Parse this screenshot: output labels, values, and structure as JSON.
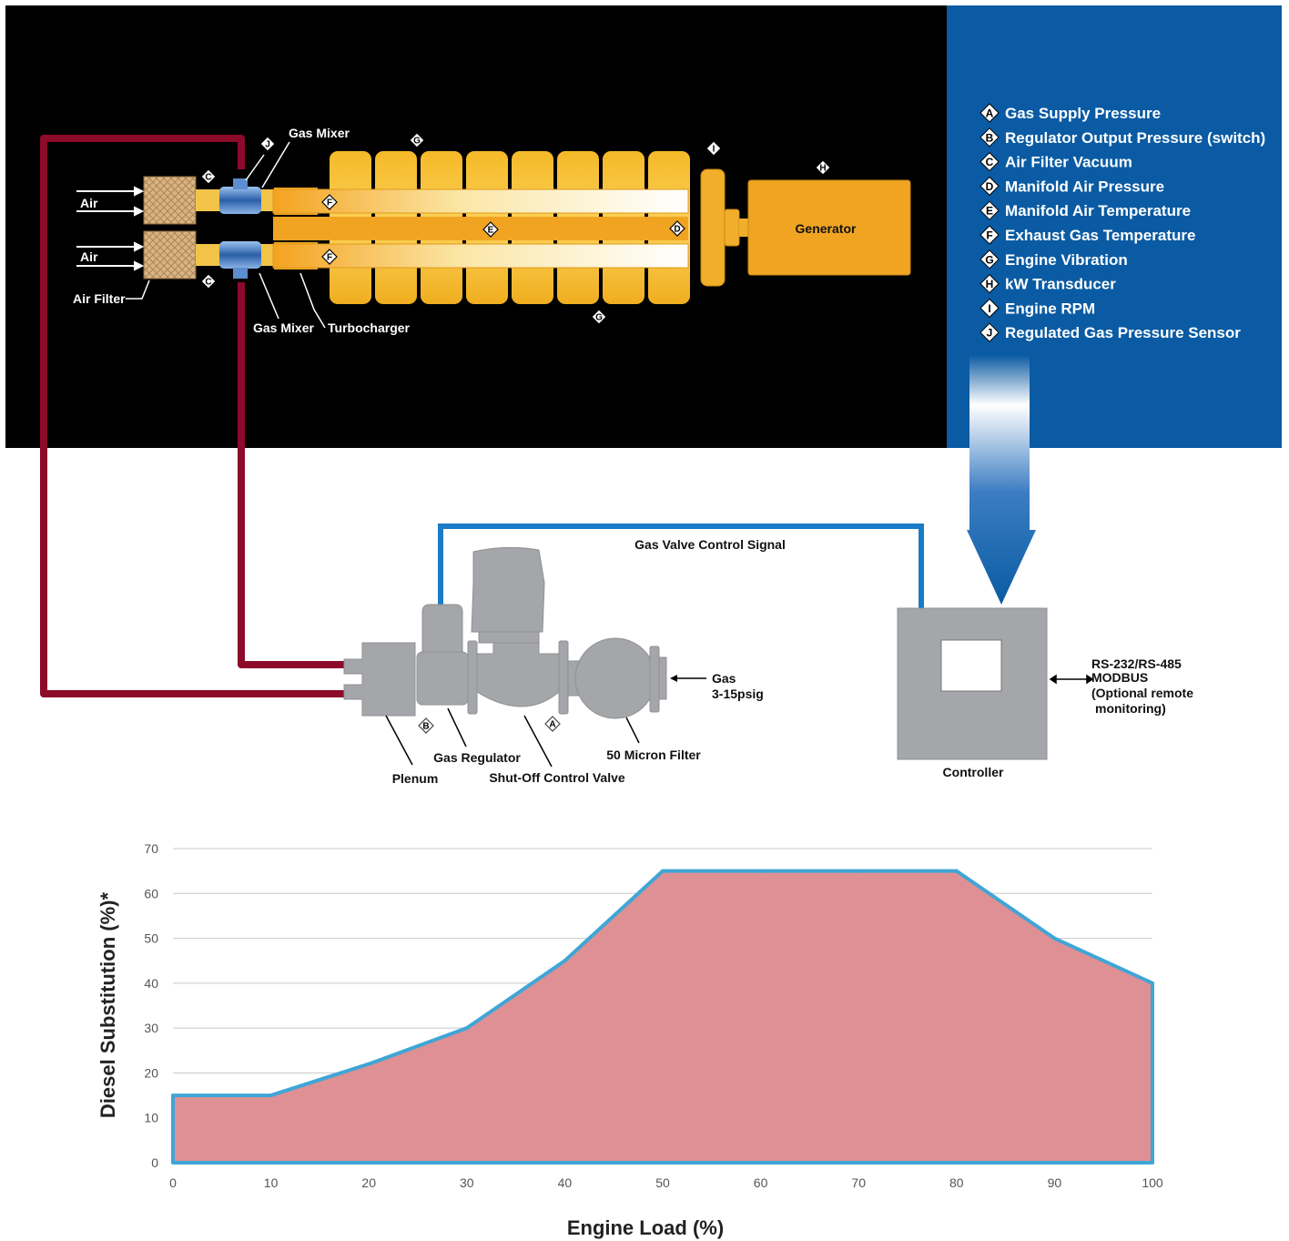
{
  "engine_labels": {
    "air_top": "Air",
    "air_bottom": "Air",
    "air_filter": "Air Filter",
    "gas_mixer_top": "Gas Mixer",
    "gas_mixer_bottom": "Gas Mixer",
    "turbocharger": "Turbocharger",
    "generator": "Generator"
  },
  "sensor_markers": {
    "j": "J",
    "g_top": "G",
    "g_bottom": "G",
    "i": "I",
    "h": "H",
    "c_top": "C",
    "c_bottom": "C",
    "f_top": "F",
    "f_bottom": "F",
    "e": "E",
    "d": "D",
    "b": "B",
    "a": "A"
  },
  "legend": [
    {
      "letter": "A",
      "text": "Gas Supply Pressure"
    },
    {
      "letter": "B",
      "text": "Regulator Output Pressure (switch)"
    },
    {
      "letter": "C",
      "text": "Air Filter Vacuum"
    },
    {
      "letter": "D",
      "text": "Manifold Air Pressure"
    },
    {
      "letter": "E",
      "text": "Manifold Air Temperature"
    },
    {
      "letter": "F",
      "text": "Exhaust Gas Temperature"
    },
    {
      "letter": "G",
      "text": "Engine Vibration"
    },
    {
      "letter": "H",
      "text": "kW Transducer"
    },
    {
      "letter": "I",
      "text": "Engine RPM"
    },
    {
      "letter": "J",
      "text": "Regulated Gas Pressure Sensor"
    }
  ],
  "gas_train": {
    "control_signal": "Gas Valve Control Signal",
    "gas_inlet_line1": "Gas",
    "gas_inlet_line2": "3-15psig",
    "plenum": "Plenum",
    "gas_regulator": "Gas Regulator",
    "shutoff_valve": "Shut-Off Control Valve",
    "micron_filter": "50 Micron Filter"
  },
  "controller": {
    "label": "Controller",
    "comm_line1": "RS-232/RS-485",
    "comm_line2": "MODBUS",
    "comm_line3": "(Optional remote",
    "comm_line4": "monitoring)"
  },
  "colors": {
    "background_dark": "#000000",
    "legend_panel": "#0a5ba3",
    "engine_yellow": "#f7c53a",
    "gas_pipe": "#8c0a2a",
    "signal_line": "#1a7cc6",
    "component_gray": "#a4a6a9",
    "area_fill": "#de9094",
    "area_line": "#3fa6d6"
  },
  "chart_data": {
    "type": "area",
    "x": [
      0,
      10,
      20,
      30,
      40,
      50,
      60,
      70,
      80,
      90,
      100
    ],
    "values": [
      15,
      15,
      22,
      30,
      45,
      65,
      65,
      65,
      65,
      50,
      40
    ],
    "xlabel": "Engine Load (%)",
    "ylabel": "Diesel Substitution (%)*",
    "xlim": [
      0,
      100
    ],
    "ylim": [
      0,
      70
    ],
    "xticks": [
      0,
      10,
      20,
      30,
      40,
      50,
      60,
      70,
      80,
      90,
      100
    ],
    "yticks": [
      0,
      10,
      20,
      30,
      40,
      50,
      60,
      70
    ],
    "grid": true
  }
}
